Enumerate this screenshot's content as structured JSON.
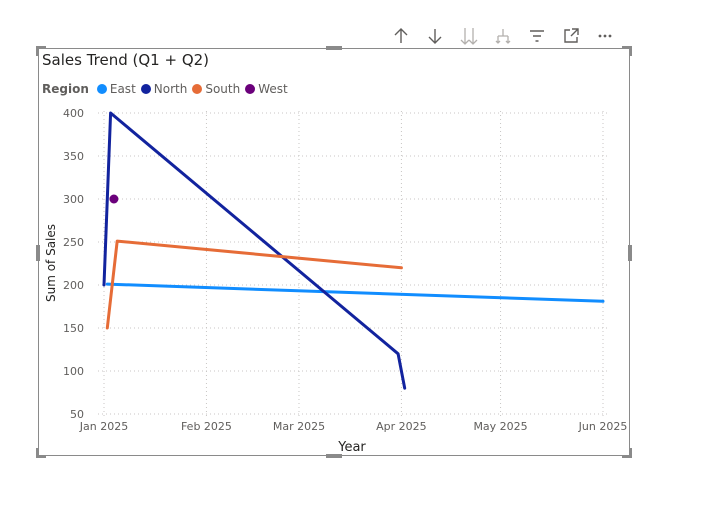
{
  "toolbar": {
    "icons": [
      "arrow-up-icon",
      "arrow-down-icon",
      "double-arrow-down-icon",
      "expand-hierarchy-icon",
      "filter-icon",
      "focus-mode-icon",
      "more-options-icon"
    ]
  },
  "chart_data": {
    "type": "line",
    "title": "Sales Trend (Q1 + Q2)",
    "xlabel": "Year",
    "ylabel": "Sum of Sales",
    "legend_title": "Region",
    "legend_position": "top-left",
    "grid": true,
    "ylim": [
      50,
      400
    ],
    "yticks": [
      50,
      100,
      150,
      200,
      250,
      300,
      350,
      400
    ],
    "xticks": [
      {
        "date": "2025-01-01",
        "label": "Jan 2025"
      },
      {
        "date": "2025-02-01",
        "label": "Feb 2025"
      },
      {
        "date": "2025-03-01",
        "label": "Mar 2025"
      },
      {
        "date": "2025-04-01",
        "label": "Apr 2025"
      },
      {
        "date": "2025-05-01",
        "label": "May 2025"
      },
      {
        "date": "2025-06-01",
        "label": "Jun 2025"
      }
    ],
    "series": [
      {
        "name": "East",
        "color": "#118DFF",
        "points": [
          {
            "x": "2025-01-02",
            "y": 201
          },
          {
            "x": "2025-06-01",
            "y": 181
          }
        ]
      },
      {
        "name": "North",
        "color": "#12239E",
        "points": [
          {
            "x": "2025-01-01",
            "y": 200
          },
          {
            "x": "2025-01-03",
            "y": 400
          },
          {
            "x": "2025-03-31",
            "y": 120
          },
          {
            "x": "2025-04-02",
            "y": 80
          }
        ]
      },
      {
        "name": "South",
        "color": "#E66C37",
        "points": [
          {
            "x": "2025-01-02",
            "y": 150
          },
          {
            "x": "2025-01-05",
            "y": 251
          },
          {
            "x": "2025-04-01",
            "y": 220
          }
        ]
      },
      {
        "name": "West",
        "color": "#6B007B",
        "points": [
          {
            "x": "2025-01-04",
            "y": 300
          }
        ]
      }
    ]
  }
}
